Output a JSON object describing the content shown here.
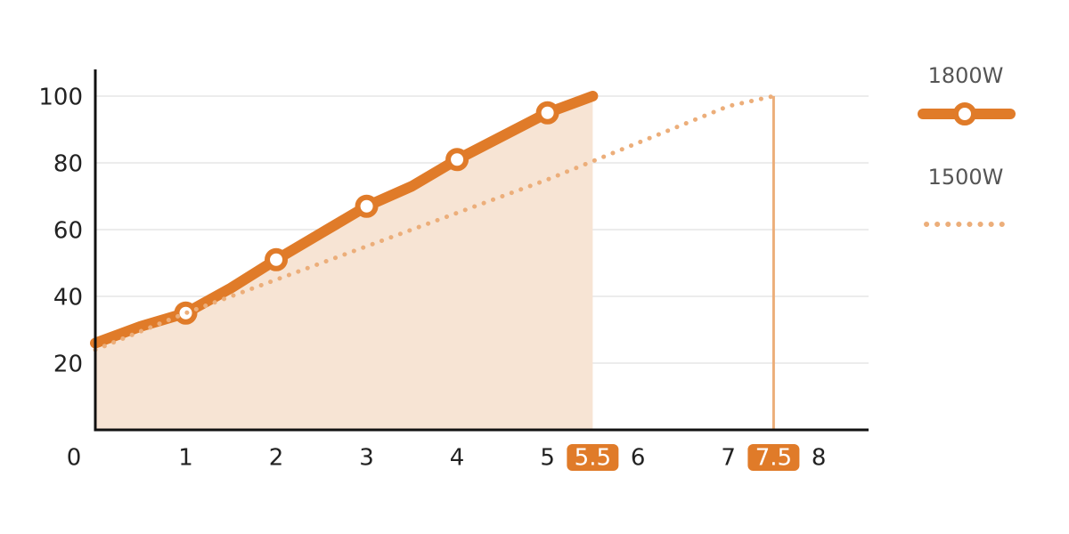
{
  "chart_data": {
    "type": "line",
    "xlim": [
      0,
      8.55
    ],
    "ylim": [
      0,
      108
    ],
    "xticks": [
      0,
      1,
      2,
      3,
      4,
      5,
      5.5,
      6,
      7,
      7.5,
      8
    ],
    "yticks": [
      20,
      40,
      60,
      80,
      100
    ],
    "grid": true,
    "series": [
      {
        "name": "1800W",
        "color": "#e07b29",
        "style": "solid",
        "fill": "#f7e4d4",
        "x": [
          0,
          0.5,
          1,
          1.5,
          2,
          2.5,
          3,
          3.5,
          4,
          4.5,
          5,
          5.5
        ],
        "values": [
          26,
          31,
          35,
          42.5,
          51,
          59,
          67,
          73,
          81,
          88,
          95,
          100
        ]
      },
      {
        "name": "1500W",
        "color": "#ecae7a",
        "style": "dotted",
        "x": [
          0,
          1,
          2,
          3,
          4,
          5,
          6,
          7,
          7.5
        ],
        "values": [
          24,
          35,
          45,
          55,
          65,
          75,
          86,
          97,
          100
        ]
      }
    ]
  }
}
